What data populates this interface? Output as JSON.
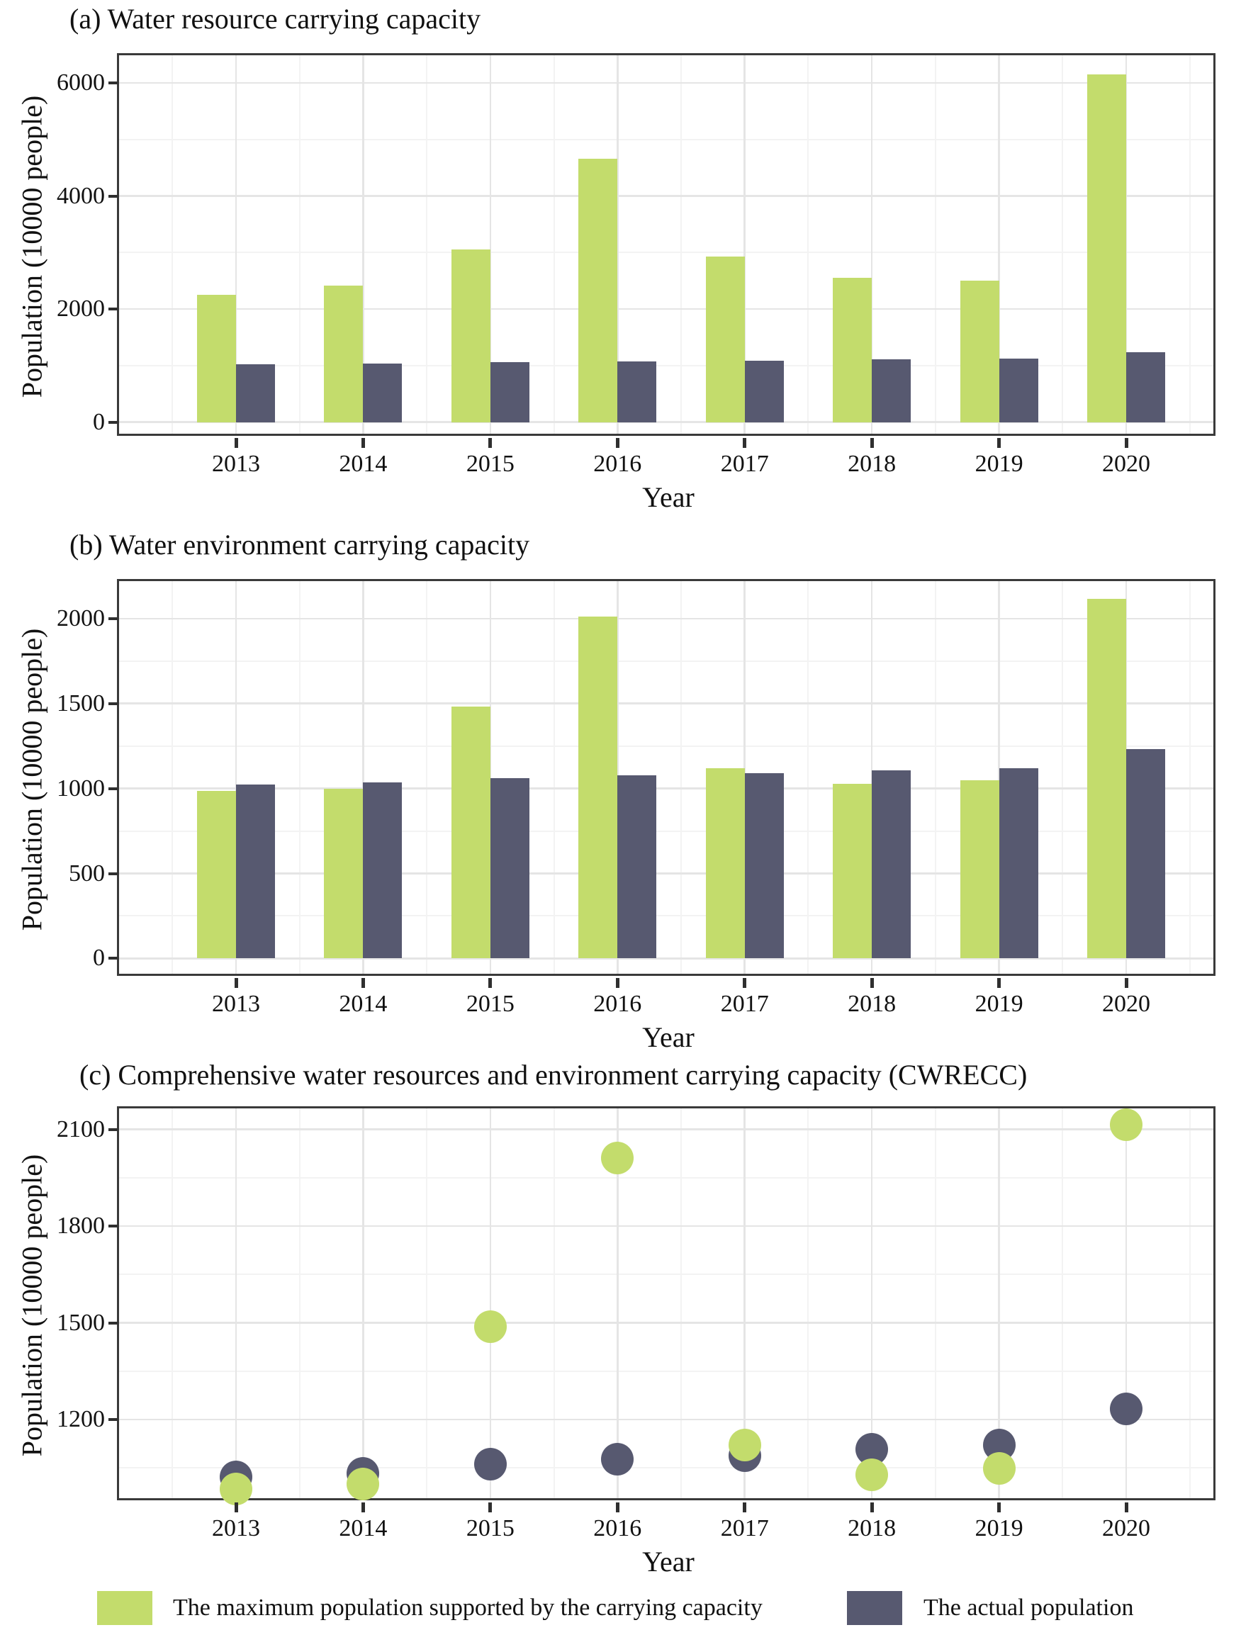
{
  "figure": {
    "background": "#ffffff",
    "ylabel": "Population (10000 people)",
    "xlabel": "Year",
    "years": [
      "2013",
      "2014",
      "2015",
      "2016",
      "2017",
      "2018",
      "2019",
      "2020"
    ],
    "colors": {
      "max_population": "#c3dc6c",
      "actual_population": "#575970",
      "panel_border": "#3a3a3a",
      "grid_major": "#e5e5e5",
      "grid_minor": "#f3f3f3",
      "tick": "#2f2f2f",
      "text": "#111111"
    },
    "legend": [
      {
        "series": "max",
        "label": "The maximum population supported by the carrying capacity",
        "color": "#c3dc6c"
      },
      {
        "series": "actual",
        "label": "The actual population",
        "color": "#575970"
      }
    ]
  },
  "chart_data": [
    {
      "id": "a",
      "type": "bar",
      "title": "(a) Water resource carrying capacity",
      "xlabel": "Year",
      "ylabel": "Population (10000 people)",
      "categories": [
        "2013",
        "2014",
        "2015",
        "2016",
        "2017",
        "2018",
        "2019",
        "2020"
      ],
      "series": [
        {
          "name": "The maximum population supported by the carrying capacity",
          "color": "#c3dc6c",
          "values": [
            2255,
            2410,
            3060,
            4660,
            2925,
            2550,
            2505,
            6155
          ]
        },
        {
          "name": "The actual population",
          "color": "#575970",
          "values": [
            1022,
            1034,
            1061,
            1077,
            1089,
            1108,
            1121,
            1233
          ]
        }
      ],
      "ylim": [
        -280,
        6490
      ],
      "yticks": [
        0,
        2000,
        4000,
        6000
      ],
      "yticks_minor": [
        1000,
        3000,
        5000
      ],
      "grid": true,
      "legend_position": "bottom"
    },
    {
      "id": "b",
      "type": "bar",
      "title": "(b) Water environment carrying capacity",
      "xlabel": "Year",
      "ylabel": "Population (10000 people)",
      "categories": [
        "2013",
        "2014",
        "2015",
        "2016",
        "2017",
        "2018",
        "2019",
        "2020"
      ],
      "series": [
        {
          "name": "The maximum population supported by the carrying capacity",
          "color": "#c3dc6c",
          "values": [
            985,
            1000,
            1482,
            2012,
            1120,
            1028,
            1048,
            2114
          ]
        },
        {
          "name": "The actual population",
          "color": "#575970",
          "values": [
            1022,
            1034,
            1061,
            1077,
            1089,
            1108,
            1121,
            1233
          ]
        }
      ],
      "ylim": [
        -115,
        2220
      ],
      "yticks": [
        0,
        500,
        1000,
        1500,
        2000
      ],
      "yticks_minor": [
        250,
        750,
        1250,
        1750
      ],
      "grid": true,
      "legend_position": "bottom"
    },
    {
      "id": "c",
      "type": "scatter",
      "title": "(c) Comprehensive water resources and environment carrying capacity (CWRECC)",
      "xlabel": "Year",
      "ylabel": "Population (10000 people)",
      "categories": [
        "2013",
        "2014",
        "2015",
        "2016",
        "2017",
        "2018",
        "2019",
        "2020"
      ],
      "series": [
        {
          "name": "The maximum population supported by the carrying capacity",
          "color": "#c3dc6c",
          "values": [
            985,
            1000,
            1487,
            2012,
            1120,
            1028,
            1048,
            2114
          ]
        },
        {
          "name": "The actual population",
          "color": "#575970",
          "values": [
            1022,
            1034,
            1061,
            1077,
            1089,
            1108,
            1121,
            1233
          ]
        }
      ],
      "ylim": [
        943,
        2165
      ],
      "yticks": [
        1200,
        1500,
        1800,
        2100
      ],
      "yticks_minor": [
        1050,
        1350,
        1650,
        1950
      ],
      "grid": true,
      "legend_position": "bottom"
    }
  ]
}
